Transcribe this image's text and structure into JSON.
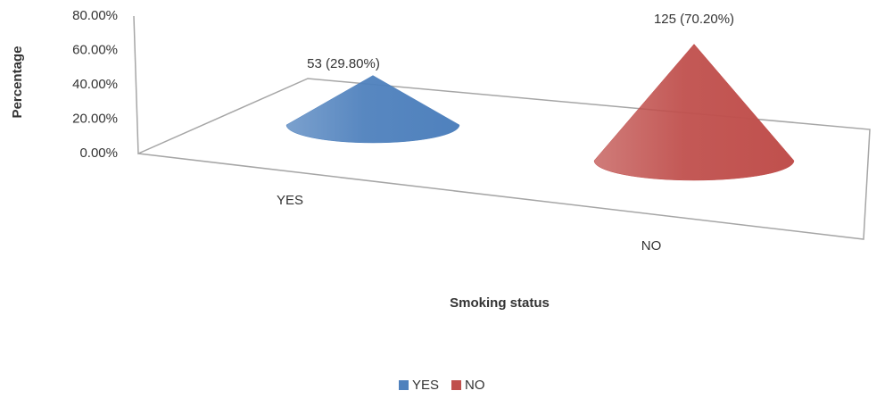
{
  "chart_data": {
    "type": "cone",
    "y_label": "Percentage",
    "x_label": "Smoking status",
    "categories": [
      "YES",
      "NO"
    ],
    "values": [
      29.8,
      70.2
    ],
    "value_labels": [
      "53 (29.80%)",
      "125 (70.20%)"
    ],
    "colors": [
      "#4f81bd",
      "#c0504d"
    ],
    "ylim": [
      0,
      80
    ],
    "yticks": [
      {
        "value": 0,
        "label": "0.00%"
      },
      {
        "value": 20,
        "label": "20.00%"
      },
      {
        "value": 40,
        "label": "40.00%"
      },
      {
        "value": 60,
        "label": "60.00%"
      },
      {
        "value": 80,
        "label": "80.00%"
      }
    ],
    "legend": "bottom"
  }
}
